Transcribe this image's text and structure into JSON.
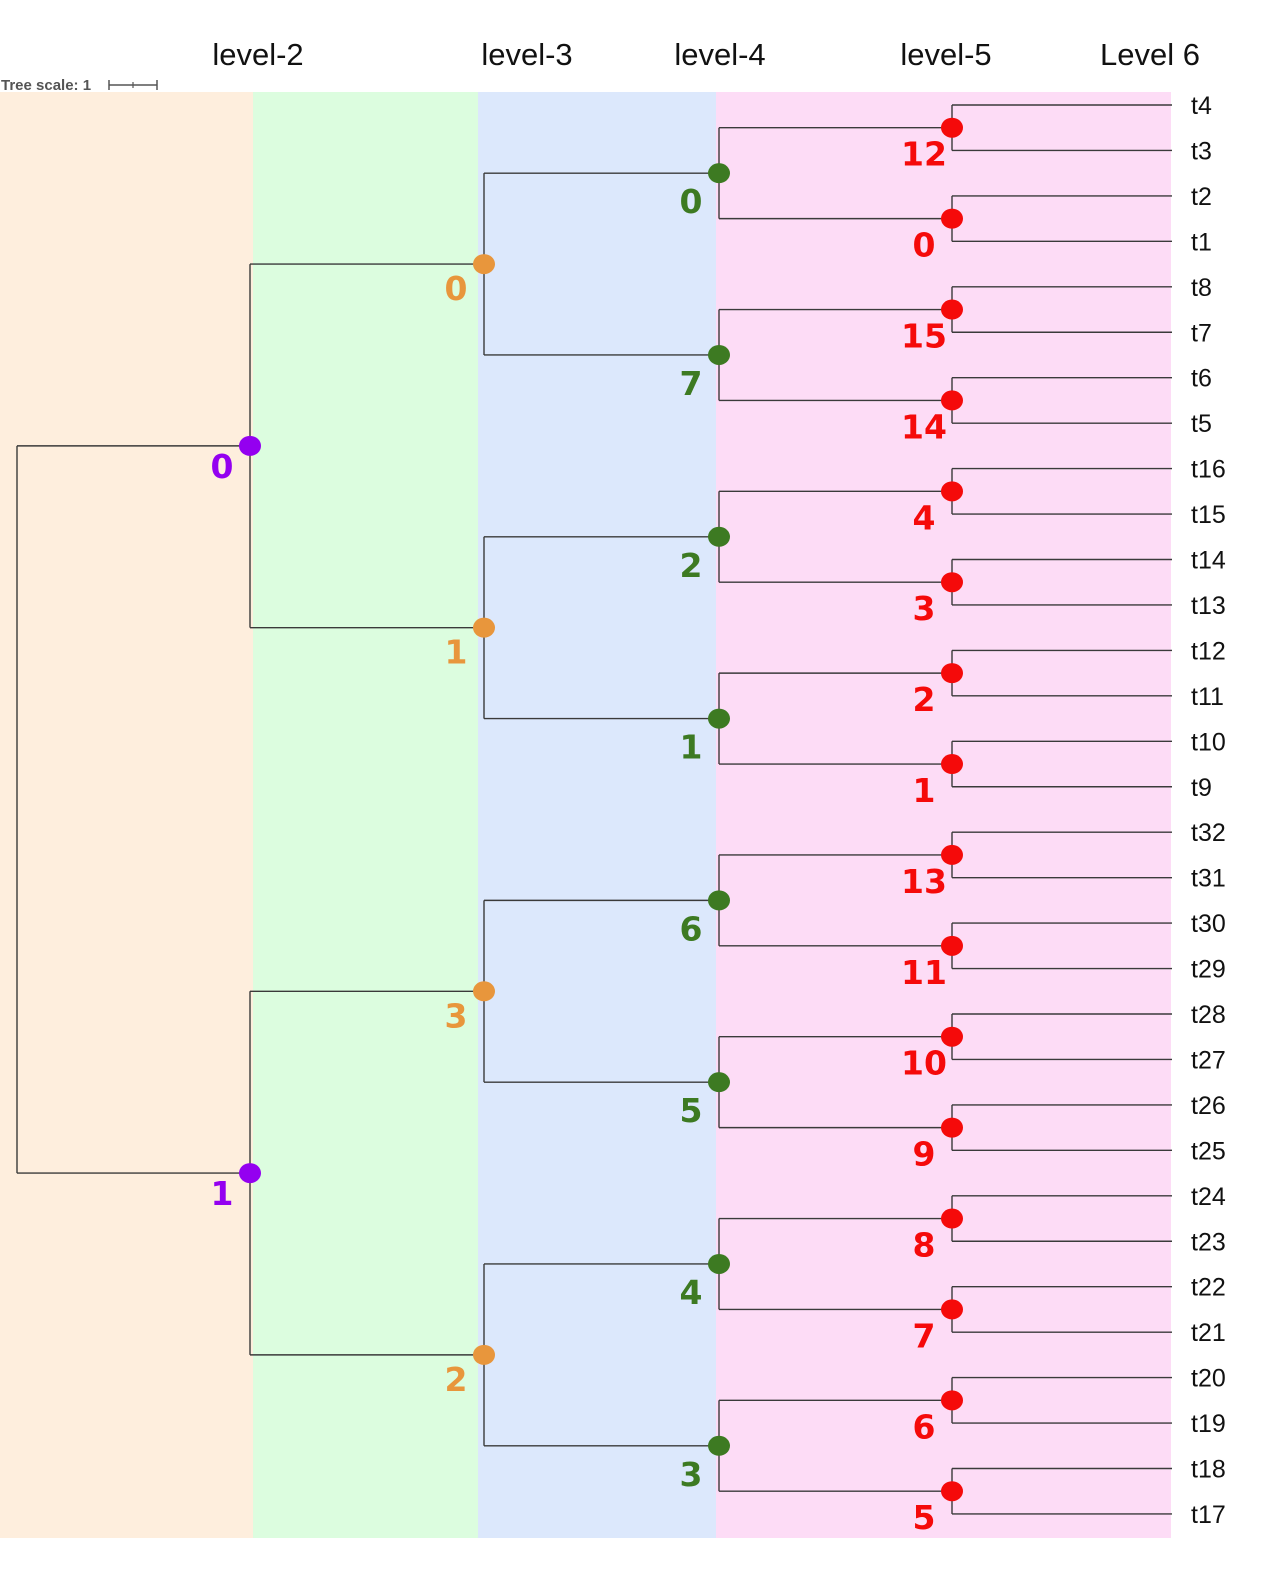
{
  "levels": [
    {
      "label": "level-2",
      "color": "#feeedd"
    },
    {
      "label": "level-3",
      "color": "#dcfddf"
    },
    {
      "label": "level-4",
      "color": "#dce8fc"
    },
    {
      "label": "level-5",
      "color": "#fddcf6"
    },
    {
      "label": "Level 6",
      "color": "#ffffff"
    }
  ],
  "tree_scale": {
    "label": "Tree scale: 1"
  },
  "node_colors": {
    "level2": "#9400f0",
    "level3": "#e8963c",
    "level4": "#3d7a22",
    "level5": "#f50a0a"
  },
  "edge_color": "#3a3a3a",
  "leaves": [
    "t4",
    "t3",
    "t2",
    "t1",
    "t8",
    "t7",
    "t6",
    "t5",
    "t16",
    "t15",
    "t14",
    "t13",
    "t12",
    "t11",
    "t10",
    "t9",
    "t32",
    "t31",
    "t30",
    "t29",
    "t28",
    "t27",
    "t26",
    "t25",
    "t24",
    "t23",
    "t22",
    "t21",
    "t20",
    "t19",
    "t18",
    "t17"
  ],
  "tree": {
    "children": [
      {
        "label": "0",
        "children": [
          {
            "label": "0",
            "children": [
              {
                "label": "0",
                "children": [
                  {
                    "label": "12"
                  },
                  {
                    "label": "0"
                  }
                ]
              },
              {
                "label": "7",
                "children": [
                  {
                    "label": "15"
                  },
                  {
                    "label": "14"
                  }
                ]
              }
            ]
          },
          {
            "label": "1",
            "children": [
              {
                "label": "2",
                "children": [
                  {
                    "label": "4"
                  },
                  {
                    "label": "3"
                  }
                ]
              },
              {
                "label": "1",
                "children": [
                  {
                    "label": "2"
                  },
                  {
                    "label": "1"
                  }
                ]
              }
            ]
          }
        ]
      },
      {
        "label": "1",
        "children": [
          {
            "label": "3",
            "children": [
              {
                "label": "6",
                "children": [
                  {
                    "label": "13"
                  },
                  {
                    "label": "11"
                  }
                ]
              },
              {
                "label": "5",
                "children": [
                  {
                    "label": "10"
                  },
                  {
                    "label": "9"
                  }
                ]
              }
            ]
          },
          {
            "label": "2",
            "children": [
              {
                "label": "4",
                "children": [
                  {
                    "label": "8"
                  },
                  {
                    "label": "7"
                  }
                ]
              },
              {
                "label": "3",
                "children": [
                  {
                    "label": "6"
                  },
                  {
                    "label": "5"
                  }
                ]
              }
            ]
          }
        ]
      }
    ]
  }
}
